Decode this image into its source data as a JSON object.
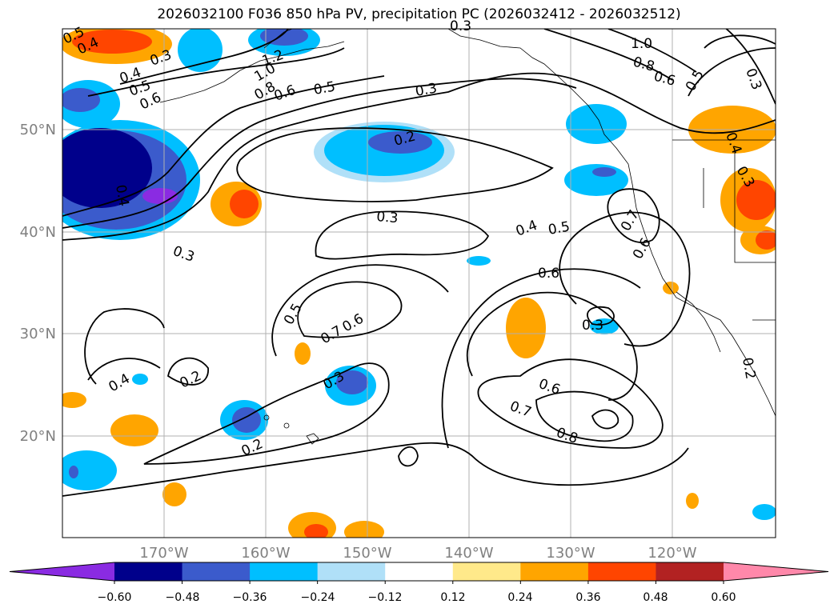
{
  "title": "2026032100 F036 850 hPa PV, precipitation PC (2026032412 - 2026032512)",
  "map": {
    "lat_ticks": [
      "50°N",
      "40°N",
      "30°N",
      "20°N"
    ],
    "lon_ticks": [
      "170°W",
      "160°W",
      "150°W",
      "140°W",
      "130°W",
      "120°W"
    ],
    "contour_labels": [
      "0.5",
      "0.4",
      "0.3",
      "0.4",
      "0.5",
      "0.6",
      "0.3",
      "1.0",
      "0.8",
      "0.6",
      "0.5",
      "0.3",
      "1.2",
      "1.0",
      "0.8",
      "0.6",
      "0.5",
      "0.3",
      "0.2",
      "0.4",
      "0.3",
      "0.3",
      "0.4",
      "0.5",
      "0.7",
      "0.6",
      "0.6",
      "0.5",
      "0.7",
      "0.6",
      "0.3",
      "0.3",
      "0.6",
      "0.7",
      "0.8",
      "0.4",
      "0.2",
      "0.3",
      "0.2",
      "0.4",
      "0.2"
    ],
    "tick_label_color": "#808080"
  },
  "colorbar": {
    "colors": [
      "#8a2be2",
      "#00008b",
      "#3b5bcc",
      "#00bfff",
      "#b0e0f8",
      "#ffffff",
      "#ffe98a",
      "#ffa500",
      "#ff4500",
      "#b22222",
      "#ff88aa"
    ],
    "labels": [
      "−0.60",
      "−0.48",
      "−0.36",
      "−0.24",
      "−0.12",
      "0.12",
      "0.24",
      "0.36",
      "0.48",
      "0.60"
    ]
  }
}
